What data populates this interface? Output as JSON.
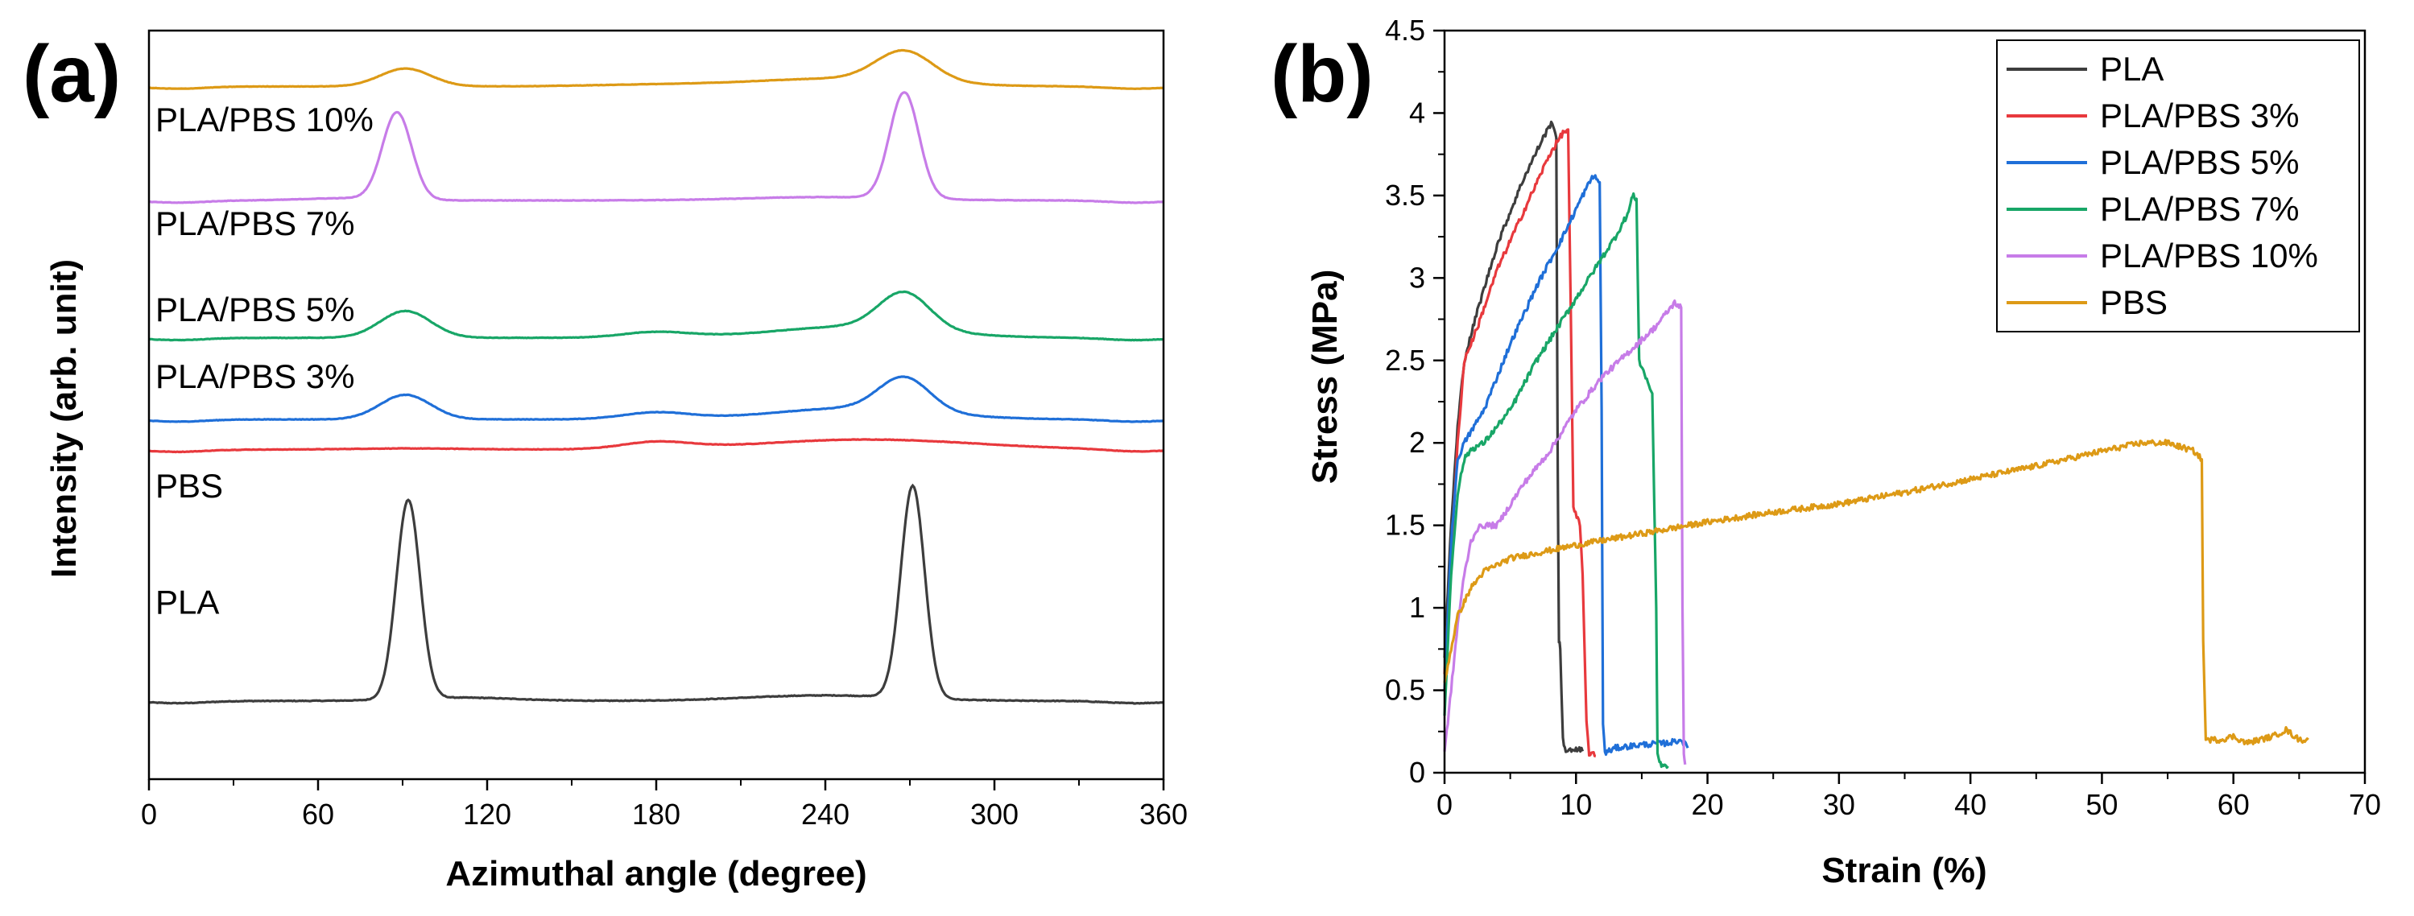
{
  "chart_data": [
    {
      "panel": "(a)",
      "type": "line",
      "xlabel": "Azimuthal angle (degree)",
      "ylabel": "Intensity (arb. unit)",
      "xlim": [
        0,
        360
      ],
      "xticks": [
        0,
        60,
        120,
        180,
        240,
        300,
        360
      ],
      "yticks_shown": false,
      "grid": false,
      "legend": "inline labels",
      "series": [
        {
          "name": "PLA",
          "label": "PLA",
          "color": "#3d3d3d",
          "offset": 0.0,
          "baseline": 0.0,
          "peaks": [
            {
              "x": 92,
              "height": 1.78,
              "width": 4.2
            },
            {
              "x": 271,
              "height": 1.9,
              "width": 4.2
            }
          ],
          "humps": [
            {
              "x": 240,
              "height": 0.05,
              "width": 28
            },
            {
              "x": 110,
              "height": 0.03,
              "width": 20
            }
          ],
          "noise": 0.006
        },
        {
          "name": "PBS",
          "label": "PBS",
          "color": "#e8393d",
          "offset": 2.25,
          "baseline": 0.0,
          "peaks": [],
          "humps": [
            {
              "x": 180,
              "height": 0.06,
              "width": 12
            },
            {
              "x": 255,
              "height": 0.09,
              "width": 38
            },
            {
              "x": 92,
              "height": 0.01,
              "width": 20
            }
          ],
          "noise": 0.004
        },
        {
          "name": "PLA/PBS 3%",
          "label": "PLA/PBS 3%",
          "color": "#1f6fd8",
          "offset": 2.52,
          "baseline": 0.0,
          "peaks": [
            {
              "x": 91,
              "height": 0.22,
              "width": 9
            },
            {
              "x": 268,
              "height": 0.3,
              "width": 9
            }
          ],
          "humps": [
            {
              "x": 180,
              "height": 0.06,
              "width": 12
            },
            {
              "x": 250,
              "height": 0.1,
              "width": 28
            }
          ],
          "noise": 0.004
        },
        {
          "name": "PLA/PBS 5%",
          "label": "PLA/PBS 5%",
          "color": "#18a667",
          "offset": 3.25,
          "baseline": 0.0,
          "peaks": [
            {
              "x": 91,
              "height": 0.24,
              "width": 9
            },
            {
              "x": 268,
              "height": 0.33,
              "width": 9
            }
          ],
          "humps": [
            {
              "x": 180,
              "height": 0.05,
              "width": 12
            },
            {
              "x": 250,
              "height": 0.1,
              "width": 28
            }
          ],
          "noise": 0.004
        },
        {
          "name": "PLA/PBS 7%",
          "label": "PLA/PBS 7%",
          "color": "#c77ce8",
          "offset": 4.48,
          "baseline": 0.0,
          "peaks": [
            {
              "x": 88,
              "height": 0.78,
              "width": 5.2
            },
            {
              "x": 268,
              "height": 0.95,
              "width": 5.2
            }
          ],
          "humps": [
            {
              "x": 240,
              "height": 0.03,
              "width": 28
            },
            {
              "x": 70,
              "height": 0.02,
              "width": 15
            }
          ],
          "noise": 0.004
        },
        {
          "name": "PLA/PBS 10%",
          "label": "PLA/PBS 10%",
          "color": "#dd9a16",
          "offset": 5.5,
          "baseline": 0.0,
          "peaks": [
            {
              "x": 91,
              "height": 0.16,
              "width": 9
            },
            {
              "x": 268,
              "height": 0.27,
              "width": 10
            }
          ],
          "humps": [
            {
              "x": 180,
              "height": 0.015,
              "width": 25
            },
            {
              "x": 245,
              "height": 0.07,
              "width": 30
            }
          ],
          "noise": 0.003
        }
      ],
      "labels": [
        {
          "text": "PLA/PBS 10%",
          "y": 5.1
        },
        {
          "text": "PLA/PBS 7%",
          "y": 4.17
        },
        {
          "text": "PLA/PBS 5%",
          "y": 3.4
        },
        {
          "text": "PLA/PBS 3%",
          "y": 2.8
        },
        {
          "text": "PBS",
          "y": 1.82
        },
        {
          "text": "PLA",
          "y": 0.78
        }
      ],
      "ylim": [
        -0.7,
        6.0
      ]
    },
    {
      "panel": "(b)",
      "type": "line",
      "xlabel": "Strain (%)",
      "ylabel": "Stress (MPa)",
      "xlim": [
        0,
        70
      ],
      "ylim": [
        0,
        4.5
      ],
      "xticks": [
        0,
        10,
        20,
        30,
        40,
        50,
        60,
        70
      ],
      "yticks": [
        0,
        0.5,
        1,
        1.5,
        2,
        2.5,
        3,
        3.5,
        4,
        4.5
      ],
      "ytick_labels": [
        "0",
        "0.5",
        "1",
        "1.5",
        "2",
        "2.5",
        "3",
        "3.5",
        "4",
        "4.5"
      ],
      "grid": false,
      "legend": "top-right",
      "series": [
        {
          "name": "PLA",
          "color": "#3d3d3d",
          "points": [
            [
              0,
              0.7
            ],
            [
              0.5,
              1.5
            ],
            [
              1,
              2.1
            ],
            [
              1.5,
              2.5
            ],
            [
              2.5,
              2.8
            ],
            [
              4,
              3.2
            ],
            [
              6,
              3.6
            ],
            [
              7.5,
              3.85
            ],
            [
              8.2,
              3.95
            ],
            [
              8.5,
              3.85
            ],
            [
              8.6,
              2.0
            ],
            [
              8.7,
              0.8
            ],
            [
              8.8,
              0.75
            ],
            [
              9,
              0.2
            ],
            [
              9.3,
              0.12
            ],
            [
              10,
              0.15
            ],
            [
              10.5,
              0.13
            ]
          ]
        },
        {
          "name": "PLA/PBS 3%",
          "color": "#e8393d",
          "points": [
            [
              0,
              0.6
            ],
            [
              0.5,
              1.3
            ],
            [
              1,
              2.0
            ],
            [
              1.5,
              2.5
            ],
            [
              2.5,
              2.7
            ],
            [
              4,
              3.05
            ],
            [
              6,
              3.4
            ],
            [
              8,
              3.75
            ],
            [
              9,
              3.88
            ],
            [
              9.4,
              3.9
            ],
            [
              9.6,
              2.8
            ],
            [
              9.8,
              1.6
            ],
            [
              10.3,
              1.5
            ],
            [
              10.5,
              1.2
            ],
            [
              10.8,
              0.3
            ],
            [
              11,
              0.12
            ],
            [
              11.5,
              0.1
            ]
          ]
        },
        {
          "name": "PLA/PBS 5%",
          "color": "#1f6fd8",
          "points": [
            [
              0,
              0.5
            ],
            [
              0.5,
              1.4
            ],
            [
              1,
              1.9
            ],
            [
              1.5,
              2.0
            ],
            [
              3,
              2.2
            ],
            [
              5,
              2.6
            ],
            [
              7,
              2.95
            ],
            [
              9,
              3.25
            ],
            [
              10.5,
              3.5
            ],
            [
              11.3,
              3.62
            ],
            [
              11.8,
              3.58
            ],
            [
              11.95,
              2.2
            ],
            [
              12.05,
              0.3
            ],
            [
              12.2,
              0.12
            ],
            [
              13,
              0.15
            ],
            [
              15,
              0.17
            ],
            [
              17,
              0.18
            ],
            [
              18,
              0.2
            ],
            [
              18.5,
              0.15
            ]
          ]
        },
        {
          "name": "PLA/PBS 7%",
          "color": "#18a667",
          "points": [
            [
              0,
              0.35
            ],
            [
              0.5,
              1.2
            ],
            [
              1,
              1.7
            ],
            [
              1.5,
              1.9
            ],
            [
              2,
              1.96
            ],
            [
              3,
              2.0
            ],
            [
              5,
              2.2
            ],
            [
              7,
              2.5
            ],
            [
              9,
              2.75
            ],
            [
              11,
              3.0
            ],
            [
              13,
              3.25
            ],
            [
              14,
              3.4
            ],
            [
              14.3,
              3.5
            ],
            [
              14.6,
              3.48
            ],
            [
              14.8,
              2.5
            ],
            [
              15.3,
              2.4
            ],
            [
              15.8,
              2.3
            ],
            [
              16.1,
              1.0
            ],
            [
              16.2,
              0.1
            ],
            [
              16.5,
              0.05
            ],
            [
              17,
              0.04
            ]
          ]
        },
        {
          "name": "PLA/PBS 10%",
          "color": "#c77ce8",
          "points": [
            [
              0,
              0.12
            ],
            [
              0.5,
              0.5
            ],
            [
              1,
              0.9
            ],
            [
              1.5,
              1.2
            ],
            [
              2,
              1.4
            ],
            [
              2.5,
              1.48
            ],
            [
              3,
              1.5
            ],
            [
              4,
              1.5
            ],
            [
              6,
              1.75
            ],
            [
              8,
              1.95
            ],
            [
              10,
              2.2
            ],
            [
              12,
              2.4
            ],
            [
              14,
              2.55
            ],
            [
              16,
              2.7
            ],
            [
              17,
              2.8
            ],
            [
              17.5,
              2.85
            ],
            [
              18,
              2.82
            ],
            [
              18.1,
              1.0
            ],
            [
              18.2,
              0.1
            ],
            [
              18.3,
              0.05
            ]
          ]
        },
        {
          "name": "PBS",
          "color": "#dd9a16",
          "points": [
            [
              0,
              0.55
            ],
            [
              0.5,
              0.75
            ],
            [
              1,
              0.95
            ],
            [
              2,
              1.12
            ],
            [
              3,
              1.22
            ],
            [
              5,
              1.3
            ],
            [
              10,
              1.38
            ],
            [
              15,
              1.45
            ],
            [
              20,
              1.52
            ],
            [
              25,
              1.58
            ],
            [
              30,
              1.63
            ],
            [
              35,
              1.7
            ],
            [
              40,
              1.78
            ],
            [
              45,
              1.86
            ],
            [
              50,
              1.95
            ],
            [
              53,
              2.0
            ],
            [
              55,
              2.0
            ],
            [
              57,
              1.95
            ],
            [
              57.6,
              1.9
            ],
            [
              57.7,
              0.8
            ],
            [
              57.9,
              0.2
            ],
            [
              59,
              0.2
            ],
            [
              60,
              0.22
            ],
            [
              61,
              0.18
            ],
            [
              63,
              0.22
            ],
            [
              64,
              0.26
            ],
            [
              65,
              0.2
            ],
            [
              65.7,
              0.2
            ]
          ]
        }
      ]
    }
  ],
  "panel_a_label": "(a)",
  "panel_b_label": "(b)"
}
